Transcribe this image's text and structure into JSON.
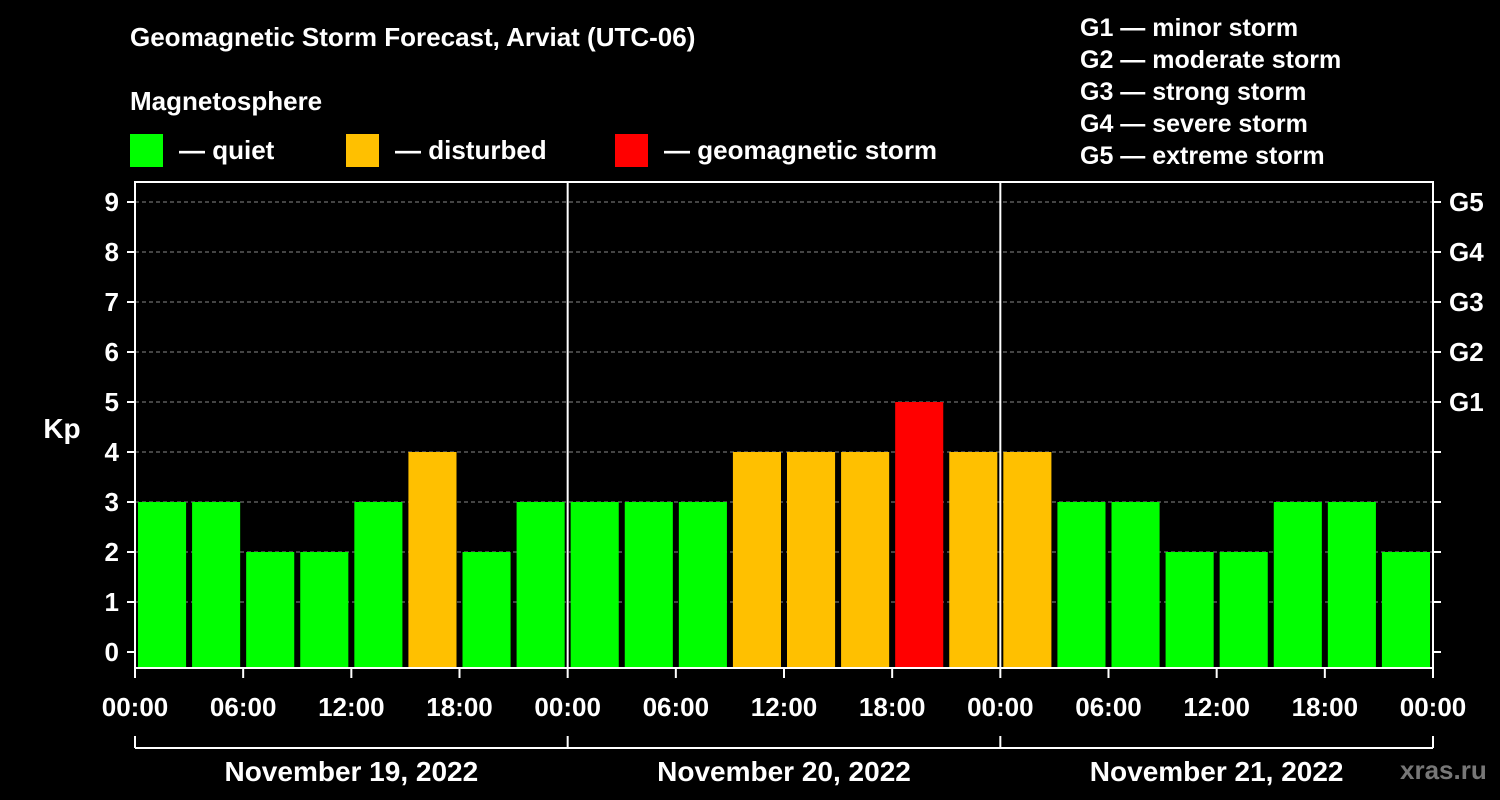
{
  "title": "Geomagnetic Storm Forecast, Arviat (UTC-06)",
  "subtitle": "Magnetosphere",
  "legend": [
    {
      "label": "— quiet",
      "color": "#00ff00"
    },
    {
      "label": "— disturbed",
      "color": "#ffc000"
    },
    {
      "label": "— geomagnetic storm",
      "color": "#ff0000"
    }
  ],
  "storm_scale": [
    "G1 — minor storm",
    "G2 — moderate storm",
    "G3 — strong storm",
    "G4 — severe storm",
    "G5 — extreme storm"
  ],
  "watermark": "xras.ru",
  "chart_data": {
    "type": "bar",
    "ylabel": "Kp",
    "ylim": [
      0,
      9
    ],
    "yticks": [
      0,
      1,
      2,
      3,
      4,
      5,
      6,
      7,
      8,
      9
    ],
    "right_axis_labels": [
      {
        "kp": 5,
        "label": "G1"
      },
      {
        "kp": 6,
        "label": "G2"
      },
      {
        "kp": 7,
        "label": "G3"
      },
      {
        "kp": 8,
        "label": "G4"
      },
      {
        "kp": 9,
        "label": "G5"
      }
    ],
    "xtick_labels": [
      "00:00",
      "06:00",
      "12:00",
      "18:00",
      "00:00",
      "06:00",
      "12:00",
      "18:00",
      "00:00",
      "06:00",
      "12:00",
      "18:00",
      "00:00"
    ],
    "days": [
      "November 19, 2022",
      "November 20, 2022",
      "November 21, 2022"
    ],
    "bar_interval_hours": 3,
    "grid": true,
    "values": [
      3,
      3,
      2,
      2,
      3,
      4,
      2,
      3,
      3,
      3,
      3,
      4,
      4,
      4,
      5,
      4,
      4,
      3,
      3,
      2,
      2,
      3,
      3,
      2
    ],
    "colors": {
      "quiet": "#00ff00",
      "disturbed": "#ffc000",
      "storm": "#ff0000"
    }
  }
}
